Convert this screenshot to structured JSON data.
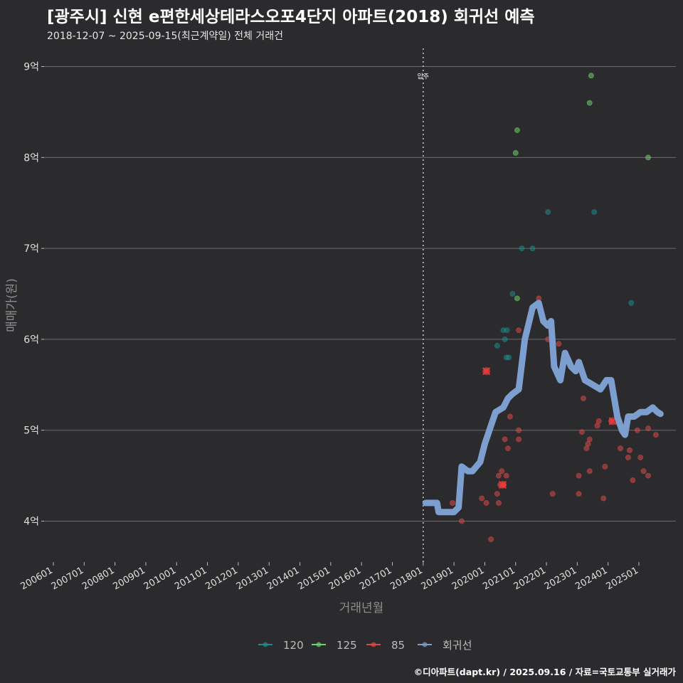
{
  "header": {
    "title": "[광주시] 신현 e편한세상테라스오포4단지 아파트(2018) 회귀선 예측",
    "subtitle": "2018-12-07 ~ 2025-09-15(최근계약일) 전체 거래건"
  },
  "caption": "©디아파트(dapt.kr) / 2025.09.16 / 자료=국토교통부 실거래가",
  "colors": {
    "s120": "#1f8a8a",
    "s125": "#6fd06f",
    "s85": "#d94a4a",
    "regression": "#7d9fd0",
    "grid": "#6b6b6b",
    "background": "#2b2a2c"
  },
  "chart_data": {
    "type": "scatter",
    "title": "[광주시] 신현 e편한세상테라스오포4단지 아파트(2018) 회귀선 예측",
    "xlabel": "거래년월",
    "ylabel": "매매가(원)",
    "x_range": [
      2005.7,
      2026.2
    ],
    "ylim": [
      3.55,
      9.2
    ],
    "x_ticks": [
      {
        "x": 2006,
        "label": "200601"
      },
      {
        "x": 2007,
        "label": "200701"
      },
      {
        "x": 2008,
        "label": "200801"
      },
      {
        "x": 2009,
        "label": "200901"
      },
      {
        "x": 2010,
        "label": "201001"
      },
      {
        "x": 2011,
        "label": "201101"
      },
      {
        "x": 2012,
        "label": "201201"
      },
      {
        "x": 2013,
        "label": "201301"
      },
      {
        "x": 2014,
        "label": "201401"
      },
      {
        "x": 2015,
        "label": "201501"
      },
      {
        "x": 2016,
        "label": "201601"
      },
      {
        "x": 2017,
        "label": "201701"
      },
      {
        "x": 2018,
        "label": "201801"
      },
      {
        "x": 2019,
        "label": "201901"
      },
      {
        "x": 2020,
        "label": "202001"
      },
      {
        "x": 2021,
        "label": "202101"
      },
      {
        "x": 2022,
        "label": "202201"
      },
      {
        "x": 2023,
        "label": "202301"
      },
      {
        "x": 2024,
        "label": "202401"
      },
      {
        "x": 2025,
        "label": "202501"
      }
    ],
    "y_ticks": [
      {
        "y": 4,
        "label": "4억"
      },
      {
        "y": 5,
        "label": "5억"
      },
      {
        "y": 6,
        "label": "6억"
      },
      {
        "y": 7,
        "label": "7억"
      },
      {
        "y": 8,
        "label": "8억"
      },
      {
        "y": 9,
        "label": "9억"
      }
    ],
    "vline": {
      "x": 2018.0,
      "label": "입주"
    },
    "legend": [
      {
        "key": "s120",
        "label": "120"
      },
      {
        "key": "s125",
        "label": "125"
      },
      {
        "key": "s85",
        "label": "85"
      },
      {
        "key": "regression",
        "label": "회귀선"
      }
    ],
    "series": [
      {
        "name": "120",
        "key": "s120",
        "points": [
          [
            2020.4,
            5.93
          ],
          [
            2020.6,
            6.1
          ],
          [
            2020.65,
            6.0
          ],
          [
            2020.72,
            6.1
          ],
          [
            2020.7,
            5.8
          ],
          [
            2020.78,
            5.8
          ],
          [
            2020.9,
            6.5
          ],
          [
            2021.2,
            7.0
          ],
          [
            2021.55,
            7.0
          ],
          [
            2022.05,
            7.4
          ],
          [
            2023.55,
            7.4
          ],
          [
            2024.75,
            6.4
          ]
        ]
      },
      {
        "name": "125",
        "key": "s125",
        "points": [
          [
            2021.0,
            8.05
          ],
          [
            2021.05,
            8.3
          ],
          [
            2021.05,
            6.45
          ],
          [
            2023.45,
            8.9
          ],
          [
            2023.4,
            8.6
          ],
          [
            2025.3,
            8.0
          ]
        ]
      },
      {
        "name": "85",
        "key": "s85",
        "points": [
          [
            2018.95,
            4.2
          ],
          [
            2019.25,
            4.0
          ],
          [
            2019.9,
            4.25
          ],
          [
            2020.05,
            4.2
          ],
          [
            2020.05,
            5.65
          ],
          [
            2020.2,
            3.8
          ],
          [
            2020.45,
            4.2
          ],
          [
            2020.4,
            4.3
          ],
          [
            2020.45,
            4.5
          ],
          [
            2020.5,
            4.4
          ],
          [
            2020.55,
            4.55
          ],
          [
            2020.6,
            4.4
          ],
          [
            2020.65,
            4.9
          ],
          [
            2020.7,
            4.5
          ],
          [
            2020.75,
            4.8
          ],
          [
            2020.82,
            5.15
          ],
          [
            2021.1,
            4.9
          ],
          [
            2021.1,
            5.0
          ],
          [
            2021.1,
            6.1
          ],
          [
            2021.75,
            6.45
          ],
          [
            2022.05,
            6.0
          ],
          [
            2022.2,
            4.3
          ],
          [
            2022.4,
            5.95
          ],
          [
            2022.55,
            5.75
          ],
          [
            2023.05,
            4.3
          ],
          [
            2023.05,
            4.5
          ],
          [
            2023.15,
            4.98
          ],
          [
            2023.2,
            5.35
          ],
          [
            2023.3,
            4.8
          ],
          [
            2023.35,
            4.85
          ],
          [
            2023.4,
            4.55
          ],
          [
            2023.4,
            4.9
          ],
          [
            2023.65,
            5.05
          ],
          [
            2023.7,
            5.1
          ],
          [
            2023.85,
            4.25
          ],
          [
            2023.9,
            4.6
          ],
          [
            2024.1,
            5.1
          ],
          [
            2024.4,
            4.8
          ],
          [
            2024.65,
            4.7
          ],
          [
            2024.7,
            4.78
          ],
          [
            2024.8,
            4.45
          ],
          [
            2024.95,
            5.0
          ],
          [
            2025.05,
            4.7
          ],
          [
            2025.15,
            4.55
          ],
          [
            2025.3,
            4.5
          ],
          [
            2025.3,
            5.02
          ],
          [
            2025.55,
            4.95
          ],
          [
            2020.6,
            4.4
          ]
        ]
      }
    ],
    "highlights": [
      [
        2020.05,
        5.65
      ],
      [
        2020.58,
        4.4
      ],
      [
        2024.15,
        5.1
      ]
    ],
    "regression": [
      [
        2018.08,
        4.2
      ],
      [
        2018.45,
        4.2
      ],
      [
        2018.5,
        4.1
      ],
      [
        2019.0,
        4.1
      ],
      [
        2019.15,
        4.15
      ],
      [
        2019.25,
        4.6
      ],
      [
        2019.45,
        4.55
      ],
      [
        2019.6,
        4.55
      ],
      [
        2019.85,
        4.65
      ],
      [
        2020.0,
        4.85
      ],
      [
        2020.2,
        5.05
      ],
      [
        2020.35,
        5.2
      ],
      [
        2020.6,
        5.25
      ],
      [
        2020.75,
        5.35
      ],
      [
        2020.9,
        5.4
      ],
      [
        2021.1,
        5.45
      ],
      [
        2021.3,
        6.0
      ],
      [
        2021.55,
        6.35
      ],
      [
        2021.75,
        6.4
      ],
      [
        2021.9,
        6.2
      ],
      [
        2022.05,
        6.15
      ],
      [
        2022.15,
        6.2
      ],
      [
        2022.25,
        5.7
      ],
      [
        2022.45,
        5.55
      ],
      [
        2022.6,
        5.85
      ],
      [
        2022.8,
        5.7
      ],
      [
        2022.95,
        5.65
      ],
      [
        2023.05,
        5.75
      ],
      [
        2023.25,
        5.55
      ],
      [
        2023.5,
        5.5
      ],
      [
        2023.75,
        5.45
      ],
      [
        2023.95,
        5.55
      ],
      [
        2024.1,
        5.55
      ],
      [
        2024.3,
        5.15
      ],
      [
        2024.45,
        5.0
      ],
      [
        2024.55,
        4.95
      ],
      [
        2024.65,
        5.15
      ],
      [
        2024.85,
        5.15
      ],
      [
        2025.05,
        5.2
      ],
      [
        2025.25,
        5.2
      ],
      [
        2025.45,
        5.25
      ],
      [
        2025.6,
        5.2
      ],
      [
        2025.7,
        5.18
      ]
    ]
  }
}
